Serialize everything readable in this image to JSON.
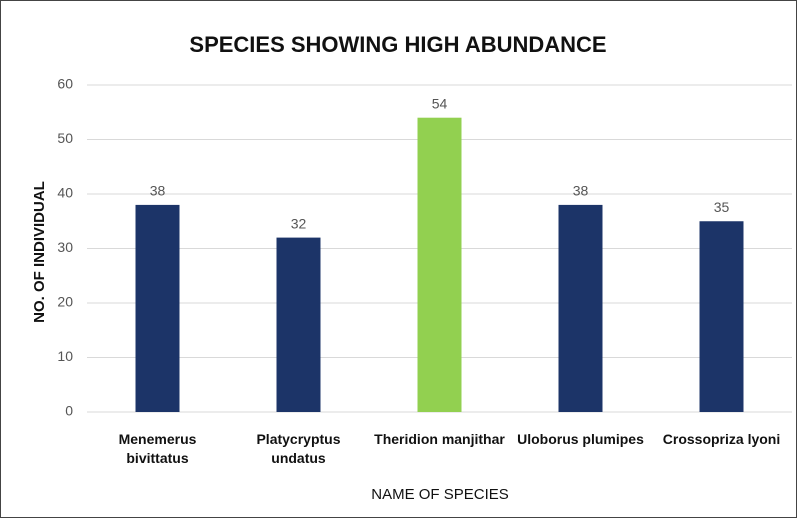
{
  "chart_data": {
    "type": "bar",
    "title": "SPECIES SHOWING HIGH ABUNDANCE",
    "x_label": "NAME OF SPECIES",
    "y_label": "NO. OF INDIVIDUAL",
    "categories": [
      "Menemerus bivittatus",
      "Platycryptus undatus",
      "Theridion manjithar",
      "Uloborus plumipes",
      "Crossopriza lyoni"
    ],
    "values": [
      38,
      32,
      54,
      38,
      35
    ],
    "colors": [
      "#1c3468",
      "#1c3468",
      "#92d050",
      "#1c3468",
      "#1c3468"
    ],
    "ylim": [
      0,
      60
    ],
    "yticks": [
      0,
      10,
      20,
      30,
      40,
      50,
      60
    ],
    "grid": true
  }
}
